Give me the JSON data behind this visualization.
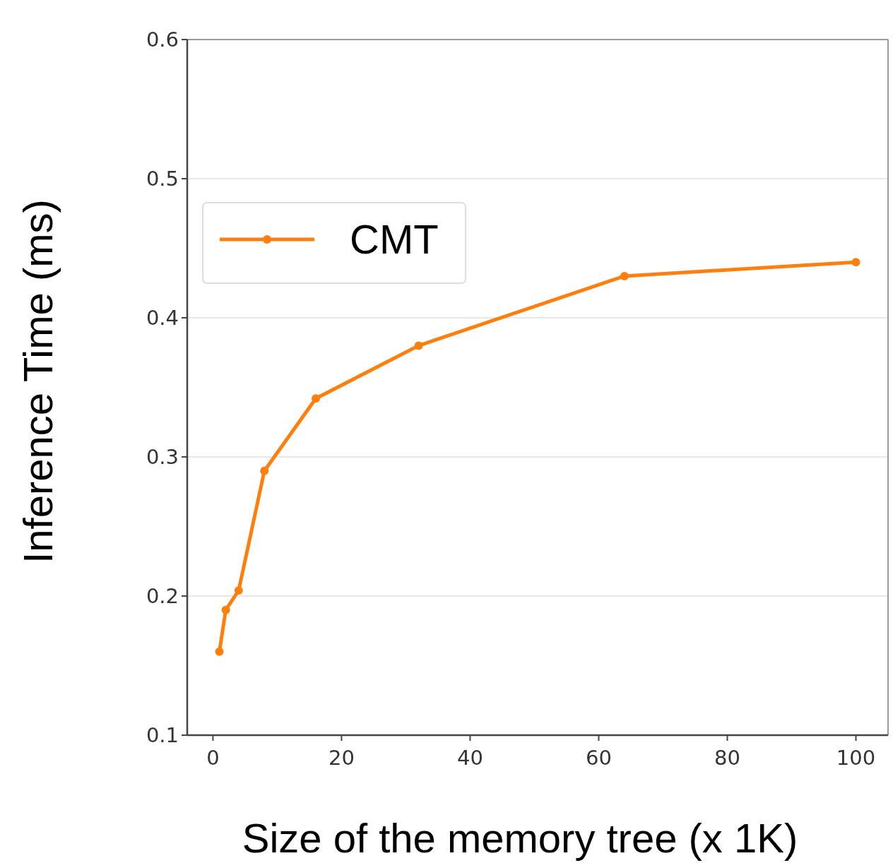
{
  "chart_data": {
    "type": "line",
    "xlabel": "Size of the memory tree  (x 1K)",
    "ylabel": "Inference Time (ms)",
    "x": [
      1,
      2,
      4,
      8,
      16,
      32,
      64,
      100
    ],
    "series": [
      {
        "name": "CMT",
        "color": "#ff7f0e",
        "values": [
          0.16,
          0.19,
          0.204,
          0.29,
          0.342,
          0.38,
          0.43,
          0.44
        ]
      }
    ],
    "xlim": [
      -4,
      105
    ],
    "ylim": [
      0.1,
      0.6
    ],
    "xticks": [
      0,
      20,
      40,
      60,
      80,
      100
    ],
    "yticks": [
      0.1,
      0.2,
      0.3,
      0.4,
      0.5,
      0.6
    ],
    "grid": "y",
    "legend": "top left",
    "marker": "circle",
    "line_style": "solid"
  }
}
